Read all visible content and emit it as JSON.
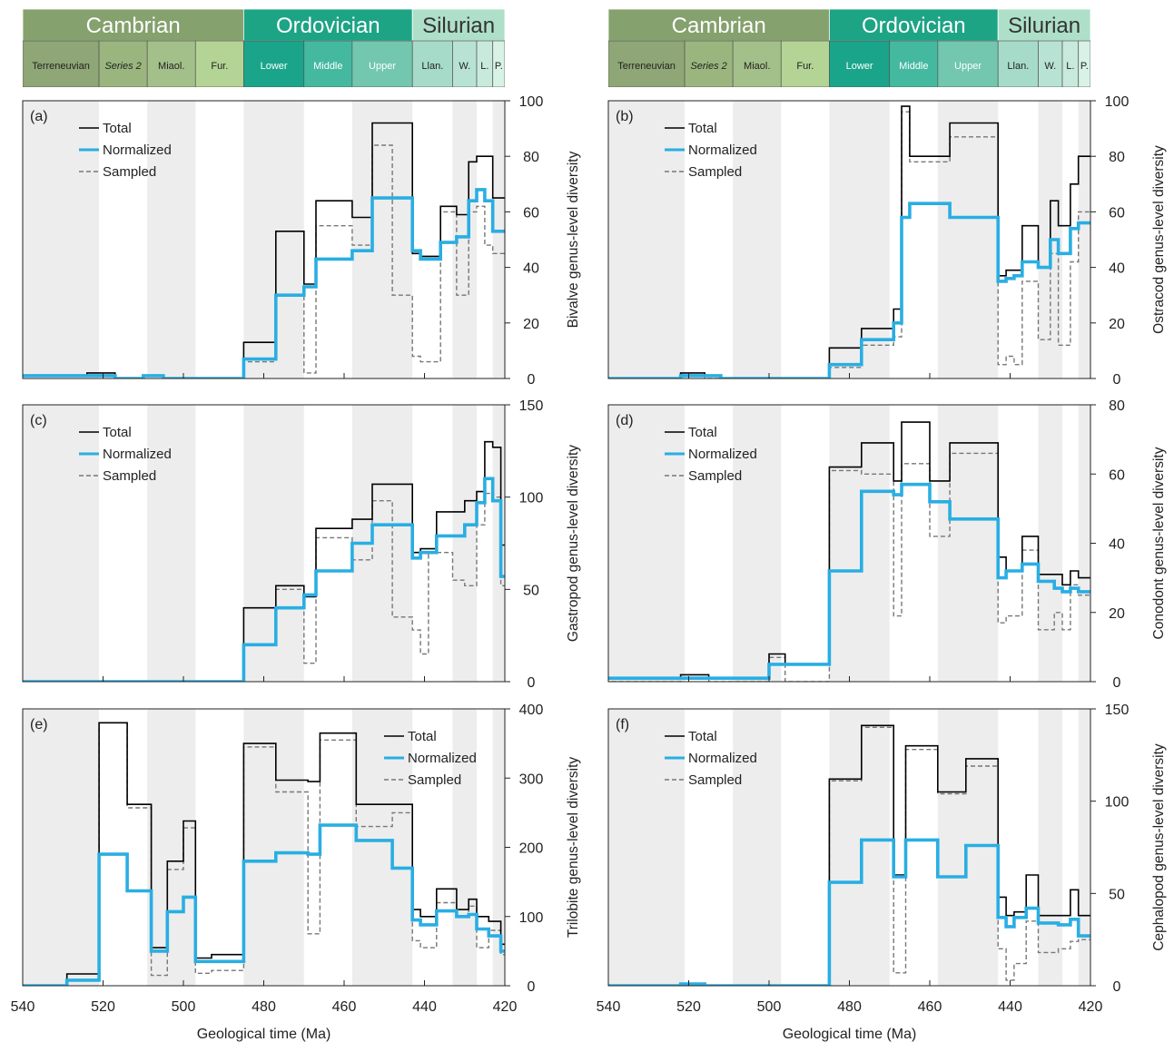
{
  "figure": {
    "xlabel": "Geological time (Ma)",
    "x_ticks": [
      540,
      520,
      500,
      480,
      460,
      440,
      420
    ],
    "legend": {
      "total": "Total",
      "normalized": "Normalized",
      "sampled": "Sampled"
    },
    "colors": {
      "total": "#000000",
      "normalized": "#29aee3",
      "sampled": "#777777",
      "grey_band": "#ededed"
    }
  },
  "timescale": {
    "periods": [
      {
        "name": "Cambrian",
        "start": 541,
        "end": 485,
        "color": "#85a16d"
      },
      {
        "name": "Ordovician",
        "start": 485,
        "end": 443,
        "color": "#1da485"
      },
      {
        "name": "Silurian",
        "start": 443,
        "end": 419,
        "color": "#aee0c9"
      }
    ],
    "epochs": [
      {
        "name": "Terreneuvian",
        "start": 541,
        "end": 521,
        "color": "#8fa676",
        "italic": false
      },
      {
        "name": "Series 2",
        "start": 521,
        "end": 509,
        "color": "#9ab67e",
        "italic": true
      },
      {
        "name": "Miaol.",
        "start": 509,
        "end": 497,
        "color": "#a4c08a",
        "italic": false
      },
      {
        "name": "Fur.",
        "start": 497,
        "end": 485,
        "color": "#b3d494",
        "italic": false
      },
      {
        "name": "Lower",
        "start": 485,
        "end": 470,
        "color": "#1aa58a",
        "italic": false
      },
      {
        "name": "Middle",
        "start": 470,
        "end": 458,
        "color": "#45b9a0",
        "italic": false
      },
      {
        "name": "Upper",
        "start": 458,
        "end": 443,
        "color": "#72c7ae",
        "italic": false
      },
      {
        "name": "Llan.",
        "start": 443,
        "end": 433,
        "color": "#a6dbca",
        "italic": false
      },
      {
        "name": "W.",
        "start": 433,
        "end": 427,
        "color": "#b8e3d4",
        "italic": false
      },
      {
        "name": "L.",
        "start": 427,
        "end": 423,
        "color": "#c8eadc",
        "italic": false
      },
      {
        "name": "P.",
        "start": 423,
        "end": 419,
        "color": "#d8f2e6",
        "italic": false
      }
    ]
  },
  "grey_bands": [
    [
      541,
      521
    ],
    [
      509,
      497
    ],
    [
      485,
      470
    ],
    [
      458,
      443
    ],
    [
      433,
      427
    ],
    [
      423,
      419
    ]
  ],
  "chart_data": [
    {
      "panel": "(a)",
      "type": "line",
      "ylabel": "Bivalve genus-level diversity",
      "xlim": [
        540,
        420
      ],
      "ylim": [
        0,
        100
      ],
      "yticks": [
        0,
        20,
        40,
        60,
        80,
        100
      ],
      "legend_position": "top-left",
      "x_edges": [
        541,
        524,
        517,
        510,
        505,
        497,
        485,
        477,
        470,
        467,
        464,
        458,
        453,
        448,
        443,
        441,
        440,
        436,
        432,
        429,
        427,
        425,
        423,
        420
      ],
      "series": [
        {
          "name": "Total",
          "values": [
            1,
            2,
            0,
            1,
            0,
            0,
            13,
            53,
            34,
            64,
            64,
            58,
            92,
            92,
            45,
            44,
            44,
            62,
            59,
            78,
            80,
            80,
            65
          ]
        },
        {
          "name": "Normalized",
          "values": [
            1,
            1,
            0,
            1,
            0,
            0,
            7,
            30,
            33,
            43,
            43,
            46,
            65,
            65,
            46,
            43,
            43,
            49,
            51,
            64,
            68,
            64,
            53
          ]
        },
        {
          "name": "Sampled",
          "values": [
            1,
            1,
            0,
            1,
            0,
            0,
            6,
            30,
            2,
            55,
            55,
            48,
            84,
            30,
            8,
            6,
            6,
            60,
            30,
            60,
            62,
            48,
            45
          ]
        }
      ]
    },
    {
      "panel": "(b)",
      "type": "line",
      "ylabel": "Ostracod genus-level diversity",
      "xlim": [
        540,
        420
      ],
      "ylim": [
        0,
        100
      ],
      "yticks": [
        0,
        20,
        40,
        60,
        80,
        100
      ],
      "legend_position": "top-left",
      "x_edges": [
        541,
        522,
        516,
        512,
        506,
        485,
        477,
        469,
        467,
        465,
        455,
        451,
        443,
        441,
        439,
        437,
        433,
        430,
        428,
        425,
        423,
        420
      ],
      "series": [
        {
          "name": "Total",
          "values": [
            0,
            2,
            1,
            0,
            0,
            11,
            18,
            25,
            98,
            80,
            92,
            92,
            37,
            39,
            39,
            55,
            40,
            64,
            55,
            70,
            80
          ]
        },
        {
          "name": "Normalized",
          "values": [
            0,
            1,
            1,
            0,
            0,
            5,
            14,
            20,
            58,
            63,
            58,
            58,
            35,
            36,
            37,
            42,
            40,
            50,
            45,
            54,
            56
          ]
        },
        {
          "name": "Sampled",
          "values": [
            0,
            1,
            0,
            0,
            0,
            4,
            12,
            15,
            96,
            78,
            87,
            87,
            5,
            8,
            5,
            35,
            14,
            45,
            12,
            42,
            60
          ]
        }
      ]
    },
    {
      "panel": "(c)",
      "type": "line",
      "ylabel": "Gastropod genus-level diversity",
      "xlim": [
        540,
        420
      ],
      "ylim": [
        0,
        150
      ],
      "yticks": [
        0,
        50,
        100,
        150
      ],
      "legend_position": "top-left",
      "x_edges": [
        541,
        485,
        477,
        470,
        467,
        464,
        458,
        455,
        453,
        448,
        443,
        441,
        439,
        437,
        433,
        430,
        427,
        425,
        423,
        421,
        420
      ],
      "series": [
        {
          "name": "Total",
          "values": [
            0,
            40,
            52,
            46,
            83,
            83,
            88,
            88,
            107,
            107,
            70,
            72,
            72,
            92,
            92,
            98,
            103,
            130,
            127,
            74
          ]
        },
        {
          "name": "Normalized",
          "values": [
            0,
            20,
            40,
            47,
            60,
            60,
            75,
            75,
            85,
            85,
            67,
            70,
            70,
            79,
            79,
            85,
            97,
            110,
            98,
            57
          ]
        },
        {
          "name": "Sampled",
          "values": [
            0,
            20,
            50,
            10,
            78,
            78,
            66,
            66,
            98,
            35,
            28,
            15,
            70,
            70,
            55,
            52,
            85,
            102,
            100,
            52
          ]
        }
      ]
    },
    {
      "panel": "(d)",
      "type": "line",
      "ylabel": "Conodont genus-level diversity",
      "xlim": [
        540,
        420
      ],
      "ylim": [
        0,
        80
      ],
      "yticks": [
        0,
        20,
        40,
        60,
        80
      ],
      "legend_position": "top-left",
      "x_edges": [
        541,
        522,
        515,
        500,
        496,
        485,
        477,
        469,
        467,
        460,
        455,
        449,
        443,
        441,
        437,
        433,
        429,
        427,
        425,
        423,
        420
      ],
      "series": [
        {
          "name": "Total",
          "values": [
            1,
            2,
            1,
            8,
            5,
            62,
            69,
            58,
            75,
            58,
            69,
            69,
            36,
            32,
            42,
            31,
            31,
            28,
            32,
            30
          ]
        },
        {
          "name": "Normalized",
          "values": [
            1,
            1,
            1,
            5,
            5,
            32,
            55,
            54,
            57,
            52,
            47,
            47,
            30,
            32,
            34,
            29,
            27,
            26,
            27,
            26
          ]
        },
        {
          "name": "Sampled",
          "values": [
            0,
            1,
            0,
            7,
            0,
            61,
            60,
            19,
            63,
            42,
            66,
            66,
            17,
            19,
            38,
            15,
            20,
            15,
            28,
            25
          ]
        }
      ]
    },
    {
      "panel": "(e)",
      "type": "line",
      "ylabel": "Trilobite genus-level diversity",
      "xlim": [
        540,
        420
      ],
      "ylim": [
        0,
        400
      ],
      "yticks": [
        0,
        100,
        200,
        300,
        400
      ],
      "legend_position": "top-right",
      "x_edges": [
        541,
        529,
        521,
        514,
        508,
        504,
        500,
        497,
        493,
        485,
        477,
        469,
        466,
        457,
        448,
        443,
        441,
        437,
        432,
        429,
        427,
        424,
        421,
        420
      ],
      "series": [
        {
          "name": "Total",
          "values": [
            0,
            17,
            380,
            262,
            55,
            180,
            238,
            40,
            45,
            350,
            297,
            295,
            365,
            262,
            262,
            110,
            100,
            140,
            110,
            125,
            100,
            93,
            60
          ]
        },
        {
          "name": "Normalized",
          "values": [
            0,
            8,
            190,
            137,
            50,
            107,
            128,
            35,
            35,
            180,
            192,
            190,
            232,
            210,
            170,
            95,
            88,
            108,
            100,
            103,
            82,
            72,
            50
          ]
        },
        {
          "name": "Sampled",
          "values": [
            0,
            8,
            380,
            257,
            15,
            168,
            228,
            18,
            22,
            345,
            280,
            75,
            355,
            230,
            250,
            65,
            55,
            120,
            100,
            115,
            55,
            80,
            45
          ]
        }
      ]
    },
    {
      "panel": "(f)",
      "type": "line",
      "ylabel": "Cephalopod genus-level diversity",
      "xlim": [
        540,
        420
      ],
      "ylim": [
        0,
        150
      ],
      "yticks": [
        0,
        50,
        100,
        150
      ],
      "legend_position": "top-left",
      "x_edges": [
        541,
        522,
        516,
        485,
        477,
        469,
        466,
        458,
        451,
        443,
        441,
        439,
        436,
        433,
        428,
        425,
        423,
        420
      ],
      "series": [
        {
          "name": "Total",
          "values": [
            0,
            1,
            0,
            112,
            141,
            60,
            130,
            105,
            123,
            48,
            38,
            40,
            60,
            38,
            38,
            52,
            38
          ]
        },
        {
          "name": "Normalized",
          "values": [
            0,
            1,
            0,
            56,
            79,
            59,
            79,
            59,
            76,
            37,
            32,
            37,
            42,
            34,
            33,
            36,
            27
          ]
        },
        {
          "name": "Sampled",
          "values": [
            0,
            1,
            0,
            111,
            140,
            7,
            128,
            104,
            119,
            20,
            3,
            12,
            35,
            18,
            20,
            24,
            25
          ]
        }
      ]
    }
  ]
}
